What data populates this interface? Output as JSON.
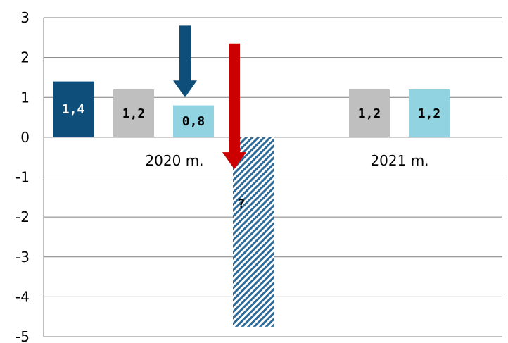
{
  "chart_data": {
    "type": "bar",
    "ylim": [
      -5,
      3
    ],
    "yticks": [
      "3",
      "2",
      "1",
      "0",
      "-1",
      "-2",
      "-3",
      "-4",
      "-5"
    ],
    "grid": true,
    "groups": [
      {
        "category": "2020 m.",
        "bars": [
          {
            "value": 1.4,
            "label": "1,4",
            "color": "#0d4f7a"
          },
          {
            "value": 1.2,
            "label": "1,2",
            "color": "#bfbfbf"
          },
          {
            "value": 0.8,
            "label": "0,8",
            "color": "#92d3e1"
          },
          {
            "value": -4.75,
            "label": "?",
            "color": "#2e6b99",
            "pattern": "hatched"
          }
        ],
        "arrows": [
          {
            "from": 2.8,
            "to": 1.0,
            "color": "#0d4f7a"
          },
          {
            "from": 2.35,
            "to": -0.8,
            "color": "#cc0000"
          }
        ]
      },
      {
        "category": "2021 m.",
        "bars": [
          {
            "value": 1.2,
            "label": "1,2",
            "color": "#bfbfbf"
          },
          {
            "value": 1.2,
            "label": "1,2",
            "color": "#92d3e1"
          }
        ]
      }
    ]
  }
}
